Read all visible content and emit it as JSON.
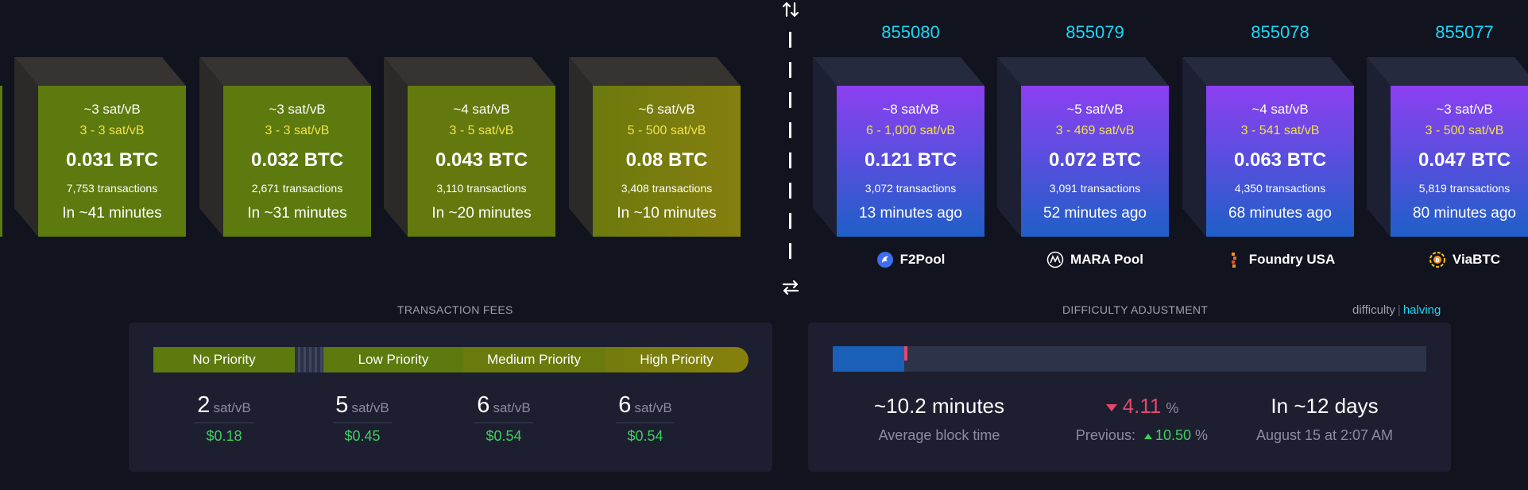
{
  "mempool_blocks": [
    {
      "median_fee": "~3 sat/vB",
      "fee_range": "3 - 3 sat/vB",
      "total": "0.031 BTC",
      "tx_count": "7,753 transactions",
      "eta": "In ~41 minutes"
    },
    {
      "median_fee": "~3 sat/vB",
      "fee_range": "3 - 3 sat/vB",
      "total": "0.032 BTC",
      "tx_count": "2,671 transactions",
      "eta": "In ~31 minutes"
    },
    {
      "median_fee": "~4 sat/vB",
      "fee_range": "3 - 5 sat/vB",
      "total": "0.043 BTC",
      "tx_count": "3,110 transactions",
      "eta": "In ~20 minutes"
    },
    {
      "median_fee": "~6 sat/vB",
      "fee_range": "5 - 500 sat/vB",
      "total": "0.08 BTC",
      "tx_count": "3,408 transactions",
      "eta": "In ~10 minutes"
    }
  ],
  "mined_blocks": [
    {
      "height": "855080",
      "median_fee": "~8 sat/vB",
      "fee_range": "6 - 1,000 sat/vB",
      "total": "0.121 BTC",
      "tx_count": "3,072 transactions",
      "age": "13 minutes ago",
      "pool": "F2Pool",
      "pool_icon": "f2pool-logo-icon"
    },
    {
      "height": "855079",
      "median_fee": "~5 sat/vB",
      "fee_range": "3 - 469 sat/vB",
      "total": "0.072 BTC",
      "tx_count": "3,091 transactions",
      "age": "52 minutes ago",
      "pool": "MARA Pool",
      "pool_icon": "mara-logo-icon"
    },
    {
      "height": "855078",
      "median_fee": "~4 sat/vB",
      "fee_range": "3 - 541 sat/vB",
      "total": "0.063 BTC",
      "tx_count": "4,350 transactions",
      "age": "68 minutes ago",
      "pool": "Foundry USA",
      "pool_icon": "foundry-logo-icon"
    },
    {
      "height": "855077",
      "median_fee": "~3 sat/vB",
      "fee_range": "3 - 500 sat/vB",
      "total": "0.047 BTC",
      "tx_count": "5,819 transactions",
      "age": "80 minutes ago",
      "pool": "ViaBTC",
      "pool_icon": "viabtc-logo-icon"
    }
  ],
  "transaction_fees": {
    "title": "TRANSACTION FEES",
    "priorities": [
      {
        "label": "No Priority",
        "value": "2",
        "unit": "sat/vB",
        "usd": "$0.18"
      },
      {
        "label": "Low Priority",
        "value": "5",
        "unit": "sat/vB",
        "usd": "$0.45"
      },
      {
        "label": "Medium Priority",
        "value": "6",
        "unit": "sat/vB",
        "usd": "$0.54"
      },
      {
        "label": "High Priority",
        "value": "6",
        "unit": "sat/vB",
        "usd": "$0.54"
      }
    ]
  },
  "difficulty": {
    "title": "DIFFICULTY ADJUSTMENT",
    "link_difficulty": "difficulty",
    "link_halving": "halving",
    "progress_fraction": 0.12,
    "avg_block_time": "~10.2 minutes",
    "avg_block_time_label": "Average block time",
    "change": "4.11",
    "change_unit": "%",
    "previous_label": "Previous:",
    "previous_change": "10.50",
    "previous_unit": "%",
    "eta": "In ~12 days",
    "eta_date": "August 15 at 2:07 AM"
  },
  "colors": {
    "accent": "#1bd8f4",
    "mempool_face": "#5d7a0e",
    "mined_face_top": "#8a3ff0",
    "mined_face_bottom": "#1f5fc8",
    "fee_range": "#f2e24a",
    "positive": "#3ecf5c",
    "negative": "#e5476a"
  }
}
